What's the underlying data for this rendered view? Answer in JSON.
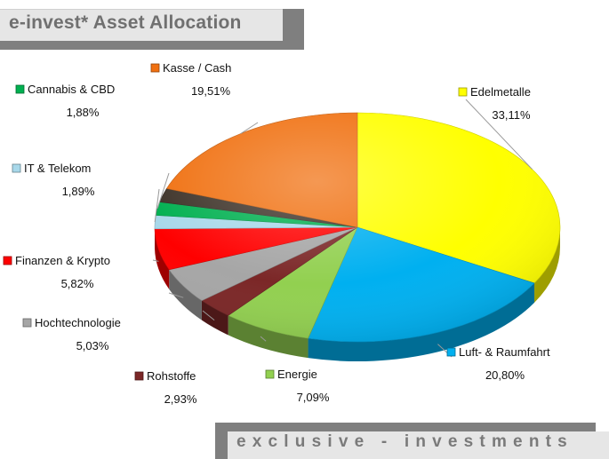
{
  "header": {
    "title": "e-invest* Asset Allocation"
  },
  "footer": {
    "slogan": "exclusive - investments"
  },
  "chart_data": {
    "type": "pie",
    "title": "e-invest* Asset Allocation",
    "decimal_separator": ",",
    "value_suffix": "%",
    "slices": [
      {
        "name": "Edelmetalle",
        "value": 33.11,
        "color": "#ffff00"
      },
      {
        "name": "Luft- & Raumfahrt",
        "value": 20.8,
        "color": "#00b0f0"
      },
      {
        "name": "Energie",
        "value": 7.09,
        "color": "#92d050"
      },
      {
        "name": "Rohstoffe",
        "value": 2.93,
        "color": "#7b2727"
      },
      {
        "name": "Hochtechnologie",
        "value": 5.03,
        "color": "#a6a6a6"
      },
      {
        "name": "Finanzen & Krypto",
        "value": 5.82,
        "color": "#ff0000"
      },
      {
        "name": "IT & Telekom",
        "value": 1.89,
        "color": "#a8d8ea"
      },
      {
        "name": "Cannabis & CBD",
        "value": 1.88,
        "color": "#00b050"
      },
      {
        "name": "",
        "value": 1.94,
        "color": "#3d3228"
      },
      {
        "name": "Kasse / Cash",
        "value": 19.51,
        "color": "#f07010"
      }
    ]
  }
}
